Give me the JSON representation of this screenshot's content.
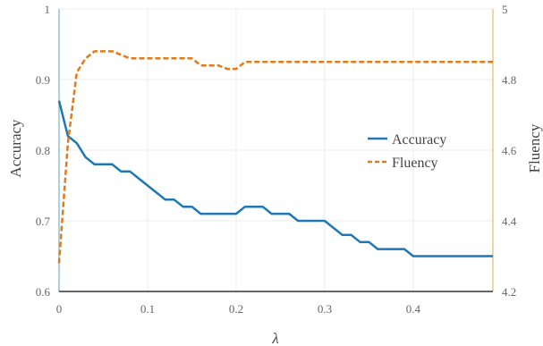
{
  "chart_data": {
    "type": "line",
    "xlabel": "λ",
    "ylabel_left": "Accuracy",
    "ylabel_right": "Fluency",
    "xlim": [
      0,
      0.49
    ],
    "ylim_left": [
      0.6,
      1.0
    ],
    "ylim_right": [
      4.2,
      5.0
    ],
    "x_ticks": [
      0,
      0.1,
      0.2,
      0.3,
      0.4
    ],
    "x_tick_labels": [
      "0",
      "0.1",
      "0.2",
      "0.3",
      "0.4"
    ],
    "y_left_ticks": [
      0.6,
      0.7,
      0.8,
      0.9,
      1.0
    ],
    "y_left_tick_labels": [
      "0.6",
      "0.7",
      "0.8",
      "0.9",
      "1"
    ],
    "y_right_ticks": [
      4.2,
      4.4,
      4.6,
      4.8,
      5.0
    ],
    "y_right_tick_labels": [
      "4.2",
      "4.4",
      "4.6",
      "4.8",
      "5"
    ],
    "grid": true,
    "legend_position": "right-center",
    "series": [
      {
        "name": "Accuracy",
        "axis": "left",
        "style": "solid",
        "color": "#1f77b4",
        "x": [
          0,
          0.01,
          0.02,
          0.03,
          0.04,
          0.05,
          0.06,
          0.07,
          0.08,
          0.09,
          0.1,
          0.11,
          0.12,
          0.13,
          0.14,
          0.15,
          0.16,
          0.17,
          0.18,
          0.19,
          0.2,
          0.21,
          0.22,
          0.23,
          0.24,
          0.25,
          0.26,
          0.27,
          0.28,
          0.29,
          0.3,
          0.31,
          0.32,
          0.33,
          0.34,
          0.35,
          0.36,
          0.37,
          0.38,
          0.39,
          0.4,
          0.41,
          0.42,
          0.43,
          0.44,
          0.45,
          0.46,
          0.47,
          0.48,
          0.49
        ],
        "y": [
          0.87,
          0.82,
          0.81,
          0.79,
          0.78,
          0.78,
          0.78,
          0.77,
          0.77,
          0.76,
          0.75,
          0.74,
          0.73,
          0.73,
          0.72,
          0.72,
          0.71,
          0.71,
          0.71,
          0.71,
          0.71,
          0.72,
          0.72,
          0.72,
          0.71,
          0.71,
          0.71,
          0.7,
          0.7,
          0.7,
          0.7,
          0.69,
          0.68,
          0.68,
          0.67,
          0.67,
          0.66,
          0.66,
          0.66,
          0.66,
          0.65,
          0.65,
          0.65,
          0.65,
          0.65,
          0.65,
          0.65,
          0.65,
          0.65,
          0.65
        ]
      },
      {
        "name": "Fluency",
        "axis": "right",
        "style": "dashed",
        "color": "#e07b1a",
        "x": [
          0,
          0.01,
          0.02,
          0.03,
          0.04,
          0.05,
          0.06,
          0.07,
          0.08,
          0.09,
          0.1,
          0.11,
          0.12,
          0.13,
          0.14,
          0.15,
          0.16,
          0.17,
          0.18,
          0.19,
          0.2,
          0.21,
          0.22,
          0.23,
          0.24,
          0.25,
          0.26,
          0.27,
          0.28,
          0.29,
          0.3,
          0.31,
          0.32,
          0.33,
          0.34,
          0.35,
          0.36,
          0.37,
          0.38,
          0.39,
          0.4,
          0.41,
          0.42,
          0.43,
          0.44,
          0.45,
          0.46,
          0.47,
          0.48,
          0.49
        ],
        "y": [
          4.28,
          4.62,
          4.82,
          4.86,
          4.88,
          4.88,
          4.88,
          4.87,
          4.86,
          4.86,
          4.86,
          4.86,
          4.86,
          4.86,
          4.86,
          4.86,
          4.84,
          4.84,
          4.84,
          4.83,
          4.83,
          4.85,
          4.85,
          4.85,
          4.85,
          4.85,
          4.85,
          4.85,
          4.85,
          4.85,
          4.85,
          4.85,
          4.85,
          4.85,
          4.85,
          4.85,
          4.85,
          4.85,
          4.85,
          4.85,
          4.85,
          4.85,
          4.85,
          4.85,
          4.85,
          4.85,
          4.85,
          4.85,
          4.85,
          4.85
        ]
      }
    ]
  },
  "colors": {
    "accuracy": "#1f77b4",
    "fluency": "#e07b1a",
    "left_axis": "#8ec3d6",
    "right_axis": "#f4c48c",
    "grid": "#ececec",
    "bottom_axis": "#333333"
  }
}
